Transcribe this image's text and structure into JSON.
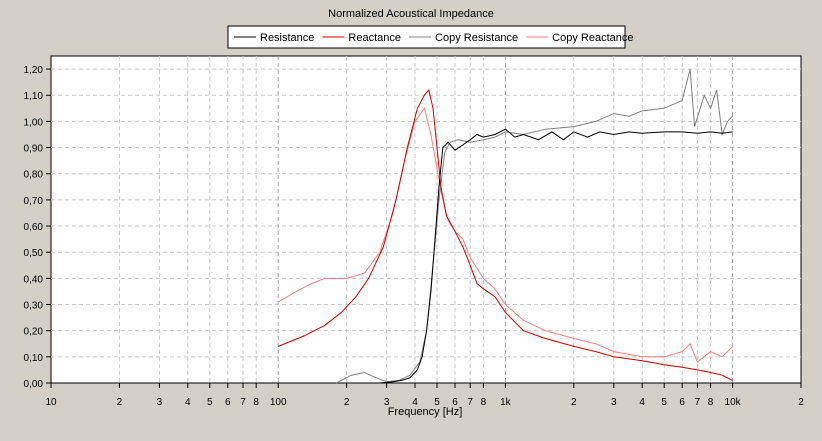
{
  "chart_data": {
    "type": "line",
    "title": "Normalized Acoustical Impedance",
    "xlabel": "Frequency [Hz]",
    "ylabel": "",
    "xscale": "log",
    "xlim": [
      10,
      20000
    ],
    "ylim": [
      0,
      1.25
    ],
    "grid": true,
    "legend_position": "top",
    "background": "#ffffff",
    "x_tick_labels": [
      {
        "value": 10,
        "label": "10"
      },
      {
        "value": 20,
        "label": "2"
      },
      {
        "value": 30,
        "label": "3"
      },
      {
        "value": 40,
        "label": "4"
      },
      {
        "value": 50,
        "label": "5"
      },
      {
        "value": 60,
        "label": "6"
      },
      {
        "value": 70,
        "label": "7"
      },
      {
        "value": 80,
        "label": "8"
      },
      {
        "value": 100,
        "label": "100"
      },
      {
        "value": 200,
        "label": "2"
      },
      {
        "value": 300,
        "label": "3"
      },
      {
        "value": 400,
        "label": "4"
      },
      {
        "value": 500,
        "label": "5"
      },
      {
        "value": 600,
        "label": "6"
      },
      {
        "value": 700,
        "label": "7"
      },
      {
        "value": 800,
        "label": "8"
      },
      {
        "value": 1000,
        "label": "1k"
      },
      {
        "value": 2000,
        "label": "2"
      },
      {
        "value": 3000,
        "label": "3"
      },
      {
        "value": 4000,
        "label": "4"
      },
      {
        "value": 5000,
        "label": "5"
      },
      {
        "value": 6000,
        "label": "6"
      },
      {
        "value": 7000,
        "label": "7"
      },
      {
        "value": 8000,
        "label": "8"
      },
      {
        "value": 10000,
        "label": "10k"
      },
      {
        "value": 20000,
        "label": "2"
      }
    ],
    "y_tick_labels": [
      {
        "value": 0,
        "label": "0,00"
      },
      {
        "value": 0.1,
        "label": "0,10"
      },
      {
        "value": 0.2,
        "label": "0,20"
      },
      {
        "value": 0.3,
        "label": "0,30"
      },
      {
        "value": 0.4,
        "label": "0,40"
      },
      {
        "value": 0.5,
        "label": "0,50"
      },
      {
        "value": 0.6,
        "label": "0,60"
      },
      {
        "value": 0.7,
        "label": "0,70"
      },
      {
        "value": 0.8,
        "label": "0,80"
      },
      {
        "value": 0.9,
        "label": "0,90"
      },
      {
        "value": 1.0,
        "label": "1,00"
      },
      {
        "value": 1.1,
        "label": "1,10"
      },
      {
        "value": 1.2,
        "label": "1,20"
      }
    ],
    "series": [
      {
        "name": "Resistance",
        "color": "#000000",
        "x": [
          280,
          320,
          350,
          380,
          410,
          430,
          450,
          470,
          490,
          510,
          530,
          560,
          600,
          650,
          700,
          750,
          800,
          900,
          1000,
          1100,
          1200,
          1400,
          1600,
          1800,
          2000,
          2300,
          2600,
          3000,
          3500,
          4000,
          5000,
          6000,
          7000,
          8000,
          9000,
          10000
        ],
        "y": [
          0.0,
          0.005,
          0.01,
          0.02,
          0.05,
          0.1,
          0.2,
          0.35,
          0.55,
          0.75,
          0.9,
          0.92,
          0.89,
          0.91,
          0.93,
          0.95,
          0.94,
          0.95,
          0.97,
          0.94,
          0.95,
          0.93,
          0.96,
          0.93,
          0.96,
          0.94,
          0.96,
          0.95,
          0.96,
          0.955,
          0.96,
          0.96,
          0.955,
          0.96,
          0.955,
          0.96
        ]
      },
      {
        "name": "Reactance",
        "color": "#cc0000",
        "x": [
          100,
          130,
          160,
          190,
          220,
          250,
          290,
          330,
          370,
          410,
          440,
          460,
          480,
          500,
          520,
          550,
          600,
          650,
          700,
          750,
          800,
          900,
          1000,
          1200,
          1500,
          2000,
          2500,
          3000,
          4000,
          5000,
          6000,
          7000,
          8000,
          9000,
          10000
        ],
        "y": [
          0.14,
          0.18,
          0.22,
          0.27,
          0.33,
          0.4,
          0.52,
          0.7,
          0.9,
          1.05,
          1.1,
          1.12,
          1.05,
          0.9,
          0.75,
          0.64,
          0.58,
          0.52,
          0.45,
          0.38,
          0.36,
          0.33,
          0.27,
          0.2,
          0.17,
          0.14,
          0.12,
          0.1,
          0.085,
          0.07,
          0.06,
          0.05,
          0.04,
          0.03,
          0.01
        ]
      },
      {
        "name": "Copy Resistance",
        "color": "#808080",
        "x": [
          180,
          210,
          240,
          270,
          300,
          340,
          380,
          420,
          450,
          480,
          510,
          540,
          570,
          620,
          700,
          800,
          900,
          1000,
          1200,
          1500,
          2000,
          2500,
          3000,
          3500,
          4000,
          5000,
          6000,
          6500,
          6800,
          7500,
          8000,
          8500,
          9000,
          9500,
          10000
        ],
        "y": [
          0.0,
          0.03,
          0.04,
          0.02,
          0.005,
          0.01,
          0.03,
          0.08,
          0.2,
          0.45,
          0.7,
          0.88,
          0.92,
          0.93,
          0.92,
          0.93,
          0.94,
          0.96,
          0.95,
          0.97,
          0.98,
          1.0,
          1.03,
          1.02,
          1.04,
          1.05,
          1.08,
          1.2,
          0.98,
          1.1,
          1.05,
          1.12,
          0.95,
          1.0,
          1.02
        ]
      },
      {
        "name": "Copy Reactance",
        "color": "#f08080",
        "x": [
          100,
          120,
          140,
          160,
          180,
          200,
          240,
          280,
          320,
          360,
          400,
          440,
          470,
          500,
          530,
          560,
          600,
          650,
          700,
          800,
          900,
          1000,
          1200,
          1500,
          2000,
          2500,
          3000,
          4000,
          5000,
          6000,
          6500,
          7000,
          8000,
          9000,
          10000
        ],
        "y": [
          0.31,
          0.35,
          0.38,
          0.4,
          0.4,
          0.4,
          0.42,
          0.5,
          0.65,
          0.85,
          1.0,
          1.05,
          0.95,
          0.82,
          0.7,
          0.62,
          0.58,
          0.55,
          0.48,
          0.4,
          0.36,
          0.3,
          0.24,
          0.2,
          0.17,
          0.15,
          0.12,
          0.1,
          0.1,
          0.12,
          0.15,
          0.08,
          0.12,
          0.1,
          0.14
        ]
      }
    ]
  }
}
